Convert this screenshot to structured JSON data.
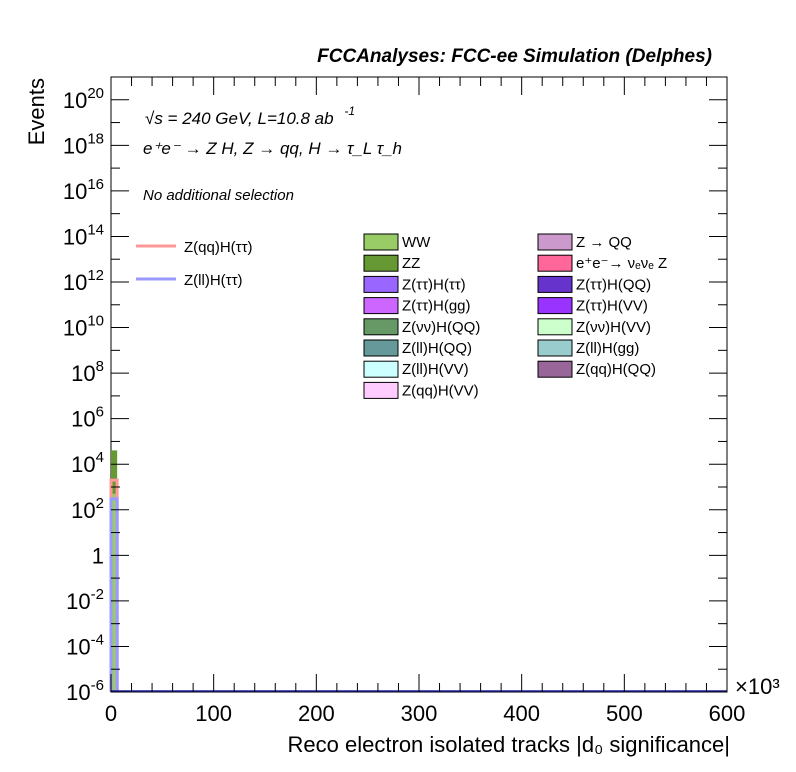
{
  "chart_data": {
    "type": "bar",
    "stacked": true,
    "header": "FCCAnalyses: FCC-ee Simulation (Delphes)",
    "annotations": {
      "energy": "√s = 240 GeV, L=10.8 ab",
      "energy_exp": "-1",
      "process": "e⁺e⁻ → Z H, Z → qq, H → τ_L τ_h",
      "selection": "No additional selection"
    },
    "xlabel": "Reco electron isolated tracks |d₀ significance|",
    "ylabel": "Events",
    "xlim": [
      0,
      600000
    ],
    "x_multiplier": "×10³",
    "ylim": [
      1e-06,
      1e+21
    ],
    "yscale": "log",
    "grid": false,
    "x_ticks": [
      "0",
      "100",
      "200",
      "300",
      "400",
      "500",
      "600"
    ],
    "y_ticks": [
      {
        "base": "10",
        "exp": "-6",
        "value": 1e-06
      },
      {
        "base": "10",
        "exp": "-4",
        "value": 0.0001
      },
      {
        "base": "10",
        "exp": "-2",
        "value": 0.01
      },
      {
        "base": "1",
        "exp": "",
        "value": 1
      },
      {
        "base": "10",
        "exp": "2",
        "value": 100.0
      },
      {
        "base": "10",
        "exp": "4",
        "value": 10000.0
      },
      {
        "base": "10",
        "exp": "6",
        "value": 1000000.0
      },
      {
        "base": "10",
        "exp": "8",
        "value": 100000000.0
      },
      {
        "base": "10",
        "exp": "10",
        "value": 10000000000.0
      },
      {
        "base": "10",
        "exp": "12",
        "value": 1000000000000.0
      },
      {
        "base": "10",
        "exp": "14",
        "value": 100000000000000.0
      },
      {
        "base": "10",
        "exp": "16",
        "value": 1e+16
      },
      {
        "base": "10",
        "exp": "18",
        "value": 1e+18
      },
      {
        "base": "10",
        "exp": "20",
        "value": 1e+20
      }
    ],
    "bin_width": 6000,
    "stack": [
      {
        "name": "WW",
        "color": "#99cc66",
        "values": [
          500
        ]
      },
      {
        "name": "ZZ",
        "color": "#669933",
        "values": [
          40000
        ]
      },
      {
        "name": "Z(ττ)H(ττ)",
        "color": "#9966ff",
        "values": [
          15
        ]
      },
      {
        "name": "Z(ττ)H(gg)",
        "color": "#cc66ff",
        "values": [
          8
        ]
      },
      {
        "name": "Z(νν)H(QQ)",
        "color": "#669966",
        "values": [
          3
        ]
      },
      {
        "name": "Z(ll)H(QQ)",
        "color": "#669999",
        "values": [
          1.5
        ]
      },
      {
        "name": "Z(ll)H(VV)",
        "color": "#ccffff",
        "values": [
          0.4
        ]
      },
      {
        "name": "Z(qq)H(VV)",
        "color": "#ffccff",
        "values": [
          0.8
        ]
      },
      {
        "name": "Z → QQ",
        "color": "#cc99cc",
        "values": [
          30
        ]
      },
      {
        "name": "e⁺e⁻→ νₑνₑ Z",
        "color": "#ff6699",
        "values": [
          20
        ]
      },
      {
        "name": "Z(ττ)H(QQ)",
        "color": "#6633cc",
        "values": [
          0.3
        ]
      },
      {
        "name": "Z(ττ)H(VV)",
        "color": "#9933ff",
        "values": [
          0.2
        ]
      },
      {
        "name": "Z(νν)H(VV)",
        "color": "#ccffcc",
        "values": [
          0.1
        ]
      },
      {
        "name": "Z(ll)H(gg)",
        "color": "#99cccc",
        "values": [
          0.1
        ]
      },
      {
        "name": "Z(qq)H(QQ)",
        "color": "#996699",
        "values": [
          0.05
        ]
      }
    ],
    "signals": [
      {
        "name": "Z(qq)H(ττ)",
        "color": "#ff9999",
        "values": [
          2000
        ]
      },
      {
        "name": "Z(ll)H(ττ)",
        "color": "#9999ff",
        "values": [
          300
        ]
      }
    ]
  }
}
